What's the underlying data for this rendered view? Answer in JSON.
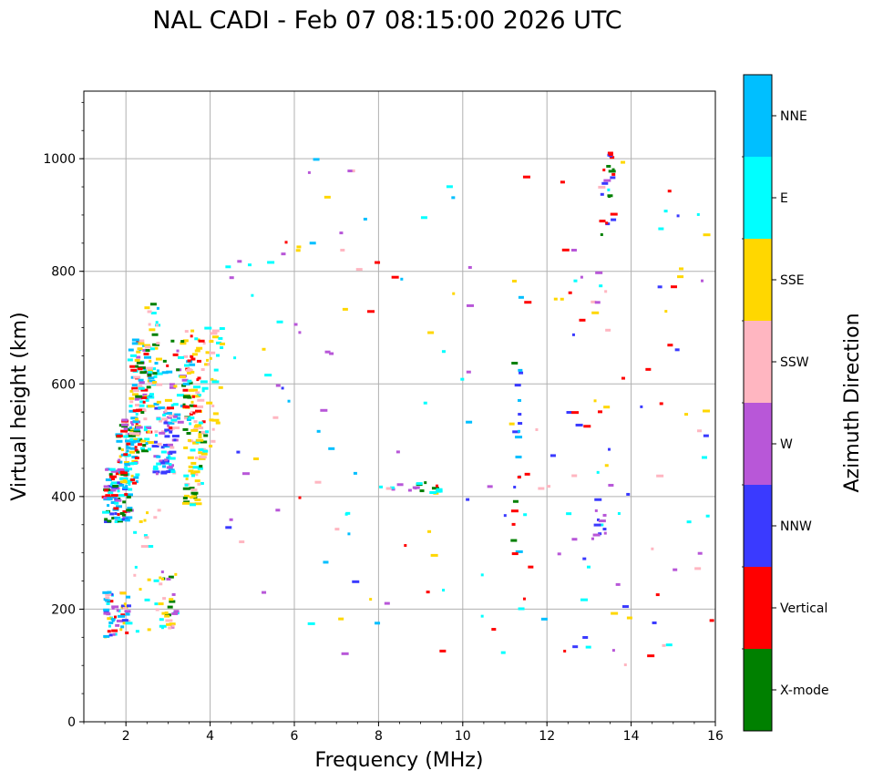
{
  "chart_data": {
    "type": "scatter",
    "title": "NAL CADI - Feb 07 08:15:00 2026 UTC",
    "xlabel": "Frequency (MHz)",
    "ylabel": "Virtual height (km)",
    "xlim": [
      1,
      16
    ],
    "ylim": [
      0,
      1120
    ],
    "xticks": [
      "2",
      "4",
      "6",
      "8",
      "10",
      "12",
      "14",
      "16"
    ],
    "yticks": [
      "0",
      "200",
      "400",
      "600",
      "800",
      "1000"
    ],
    "grid": true,
    "colorbar": {
      "label": "Azimuth Direction",
      "categories": [
        {
          "name": "X-mode",
          "color": "#008000"
        },
        {
          "name": "Vertical",
          "color": "#ff0000"
        },
        {
          "name": "NNW",
          "color": "#3a3aff"
        },
        {
          "name": "W",
          "color": "#b857d8"
        },
        {
          "name": "SSW",
          "color": "#ffb6c1"
        },
        {
          "name": "SSE",
          "color": "#ffd700"
        },
        {
          "name": "E",
          "color": "#00ffff"
        },
        {
          "name": "NNE",
          "color": "#00bfff"
        }
      ]
    },
    "clusters": [
      {
        "f": [
          1.5,
          2.1
        ],
        "h": [
          355,
          450
        ],
        "n": 90,
        "mix": [
          "NNE",
          "Vertical",
          "X-mode",
          "NNE",
          "E",
          "NNW",
          "W"
        ]
      },
      {
        "f": [
          1.8,
          2.3
        ],
        "h": [
          420,
          540
        ],
        "n": 80,
        "mix": [
          "NNE",
          "E",
          "Vertical",
          "X-mode",
          "W",
          "SSE"
        ]
      },
      {
        "f": [
          2.1,
          2.6
        ],
        "h": [
          480,
          680
        ],
        "n": 110,
        "mix": [
          "Vertical",
          "NNE",
          "E",
          "SSW",
          "SSE",
          "X-mode",
          "W"
        ]
      },
      {
        "f": [
          2.5,
          2.8
        ],
        "h": [
          560,
          750
        ],
        "n": 40,
        "mix": [
          "SSE",
          "E",
          "SSW",
          "NNE",
          "X-mode"
        ]
      },
      {
        "f": [
          2.7,
          3.2
        ],
        "h": [
          440,
          560
        ],
        "n": 70,
        "mix": [
          "NNE",
          "E",
          "W",
          "SSW",
          "NNW"
        ]
      },
      {
        "f": [
          2.9,
          3.6
        ],
        "h": [
          520,
          680
        ],
        "n": 60,
        "mix": [
          "SSW",
          "E",
          "SSE",
          "W",
          "X-mode",
          "NNE",
          "Vertical"
        ]
      },
      {
        "f": [
          3.4,
          3.9
        ],
        "h": [
          380,
          520
        ],
        "n": 55,
        "mix": [
          "SSE",
          "SSE",
          "X-mode",
          "SSW",
          "E"
        ]
      },
      {
        "f": [
          3.4,
          4.3
        ],
        "h": [
          480,
          700
        ],
        "n": 90,
        "mix": [
          "SSE",
          "SSE",
          "SSE",
          "SSW",
          "E",
          "Vertical"
        ]
      },
      {
        "f": [
          1.5,
          2.1
        ],
        "h": [
          150,
          230
        ],
        "n": 55,
        "mix": [
          "Vertical",
          "NNE",
          "E",
          "SSW",
          "SSE",
          "NNW",
          "W"
        ]
      },
      {
        "f": [
          2.8,
          3.2
        ],
        "h": [
          165,
          270
        ],
        "n": 30,
        "mix": [
          "SSE",
          "X-mode",
          "E",
          "SSW",
          "W"
        ]
      },
      {
        "f": [
          2.2,
          2.8
        ],
        "h": [
          160,
          380
        ],
        "n": 20,
        "mix": [
          "SSW",
          "SSE",
          "E"
        ]
      },
      {
        "f": [
          4.3,
          8.0
        ],
        "h": [
          90,
          1000
        ],
        "n": 60,
        "mix": [
          "Vertical",
          "W",
          "SSW",
          "E",
          "NNE",
          "SSE",
          "NNW"
        ]
      },
      {
        "f": [
          8.0,
          10.0
        ],
        "h": [
          405,
          425
        ],
        "n": 18,
        "mix": [
          "SSE",
          "E",
          "X-mode",
          "W",
          "Vertical"
        ]
      },
      {
        "f": [
          8.0,
          12.0
        ],
        "h": [
          90,
          990
        ],
        "n": 45,
        "mix": [
          "SSE",
          "SSW",
          "NNW",
          "E",
          "W",
          "Vertical",
          "NNE"
        ]
      },
      {
        "f": [
          11.2,
          11.4
        ],
        "h": [
          290,
          650
        ],
        "n": 18,
        "mix": [
          "NNE",
          "NNW",
          "Vertical",
          "W",
          "X-mode"
        ]
      },
      {
        "f": [
          12.0,
          14.0
        ],
        "h": [
          90,
          1010
        ],
        "n": 55,
        "mix": [
          "W",
          "NNW",
          "SSW",
          "SSE",
          "E",
          "Vertical"
        ]
      },
      {
        "f": [
          13.3,
          13.6
        ],
        "h": [
          860,
          1010
        ],
        "n": 22,
        "mix": [
          "NNW",
          "W",
          "Vertical",
          "X-mode"
        ]
      },
      {
        "f": [
          13.1,
          13.4
        ],
        "h": [
          320,
          400
        ],
        "n": 10,
        "mix": [
          "NNW",
          "W"
        ]
      },
      {
        "f": [
          14.2,
          16.0
        ],
        "h": [
          100,
          950
        ],
        "n": 35,
        "mix": [
          "SSE",
          "SSW",
          "Vertical",
          "NNW",
          "E",
          "W"
        ]
      }
    ]
  }
}
